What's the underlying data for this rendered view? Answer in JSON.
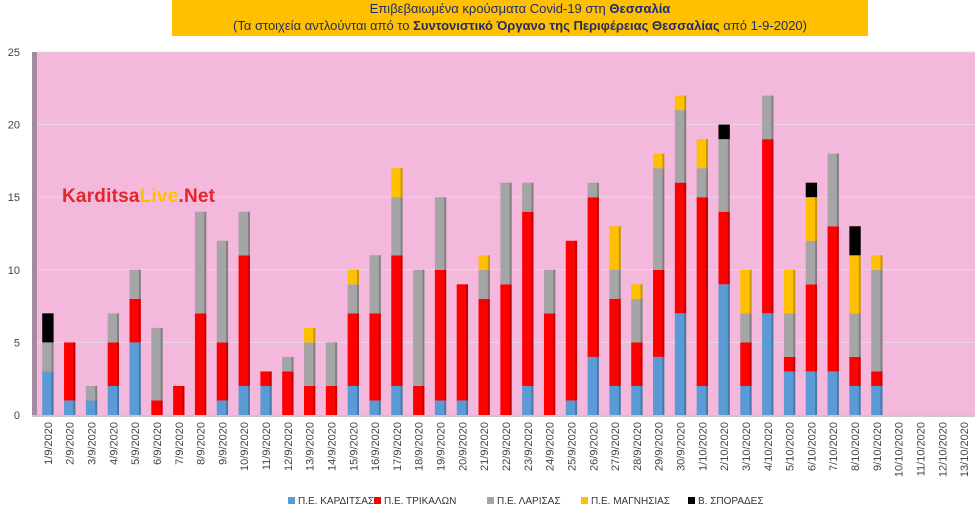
{
  "title": {
    "line1_prefix": "Επιβεβαιωμένα κρούσματα Covid-19 στη ",
    "line1_bold": "Θεσσαλία",
    "line2_prefix": "(Τα στοιχεία αντλούνται από το ",
    "line2_bold": "Συντονιστικό Όργανο της Περιφέρειας Θεσσαλίας",
    "line2_suffix": " από 1-9-2020)"
  },
  "watermark": {
    "part1": "Karditsa",
    "part2": "Live",
    "part3": ".Net"
  },
  "colors": {
    "plot_background": "#f4b8dc",
    "title_background": "#ffc000",
    "karditsa": "#5b9bd5",
    "trikala": "#ff0000",
    "larisa": "#a5a5a5",
    "magnisia": "#ffc000",
    "sporades": "#000000",
    "watermark_red": "#e3262a",
    "watermark_yellow": "#ffc000"
  },
  "chart_data": {
    "type": "bar",
    "stacked": true,
    "ylim": [
      0,
      25
    ],
    "yticks": [
      0,
      5,
      10,
      15,
      20,
      25
    ],
    "grid": true,
    "legend_position": "bottom",
    "categories": [
      "1/9/2020",
      "2/9/2020",
      "3/9/2020",
      "4/9/2020",
      "5/9/2020",
      "6/9/2020",
      "7/9/2020",
      "8/9/2020",
      "9/9/2020",
      "10/9/2020",
      "11/9/2020",
      "12/9/2020",
      "13/9/2020",
      "14/9/2020",
      "15/9/2020",
      "16/9/2020",
      "17/9/2020",
      "18/9/2020",
      "19/9/2020",
      "20/9/2020",
      "21/9/2020",
      "22/9/2020",
      "23/9/2020",
      "24/9/2020",
      "25/9/2020",
      "26/9/2020",
      "27/9/2020",
      "28/9/2020",
      "29/9/2020",
      "30/9/2020",
      "1/10/2020",
      "2/10/2020",
      "3/10/2020",
      "4/10/2020",
      "5/10/2020",
      "6/10/2020",
      "7/10/2020",
      "8/10/2020",
      "9/10/2020",
      "10/10/2020",
      "11/10/2020",
      "12/10/2020",
      "13/10/2020"
    ],
    "series": [
      {
        "name": "Π.Ε. ΚΑΡΔΙΤΣΑΣ",
        "color_key": "karditsa",
        "values": [
          3,
          1,
          1,
          2,
          5,
          0,
          0,
          0,
          1,
          2,
          2,
          0,
          0,
          0,
          2,
          1,
          2,
          0,
          1,
          1,
          0,
          0,
          2,
          0,
          1,
          4,
          2,
          2,
          4,
          7,
          2,
          9,
          2,
          7,
          3,
          3,
          3,
          2,
          2,
          0,
          0,
          0,
          0
        ]
      },
      {
        "name": "Π.Ε. ΤΡΙΚΑΛΩΝ",
        "color_key": "trikala",
        "values": [
          0,
          4,
          0,
          3,
          3,
          1,
          2,
          7,
          4,
          9,
          1,
          3,
          2,
          2,
          5,
          6,
          9,
          2,
          9,
          8,
          8,
          9,
          12,
          7,
          11,
          11,
          6,
          3,
          6,
          9,
          13,
          5,
          3,
          12,
          1,
          6,
          10,
          2,
          1,
          0,
          0,
          0,
          0
        ]
      },
      {
        "name": "Π.Ε. ΛΑΡΙΣΑΣ",
        "color_key": "larisa",
        "values": [
          2,
          0,
          1,
          2,
          2,
          5,
          0,
          7,
          7,
          3,
          0,
          1,
          3,
          3,
          2,
          4,
          4,
          8,
          5,
          0,
          2,
          7,
          2,
          3,
          0,
          1,
          2,
          3,
          7,
          5,
          2,
          5,
          2,
          3,
          3,
          3,
          5,
          3,
          7,
          0,
          0,
          0,
          0
        ]
      },
      {
        "name": "Π.Ε. ΜΑΓΝΗΣΙΑΣ",
        "color_key": "magnisia",
        "values": [
          0,
          0,
          0,
          0,
          0,
          0,
          0,
          0,
          0,
          0,
          0,
          0,
          1,
          0,
          1,
          0,
          2,
          0,
          0,
          0,
          1,
          0,
          0,
          0,
          0,
          0,
          3,
          1,
          1,
          1,
          2,
          0,
          3,
          0,
          3,
          3,
          0,
          4,
          1,
          0,
          0,
          0,
          0
        ]
      },
      {
        "name": "Β. ΣΠΟΡΑΔΕΣ",
        "color_key": "sporades",
        "values": [
          2,
          0,
          0,
          0,
          0,
          0,
          0,
          0,
          0,
          0,
          0,
          0,
          0,
          0,
          0,
          0,
          0,
          0,
          0,
          0,
          0,
          0,
          0,
          0,
          0,
          0,
          0,
          0,
          0,
          0,
          0,
          1,
          0,
          0,
          0,
          1,
          0,
          2,
          0,
          0,
          0,
          0,
          0
        ]
      }
    ]
  }
}
